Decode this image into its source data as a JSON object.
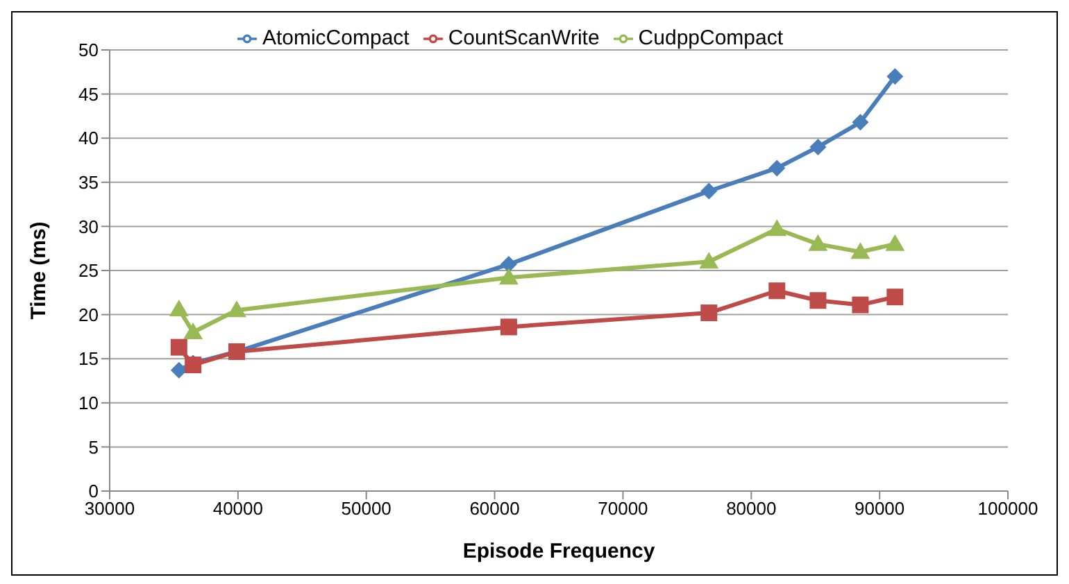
{
  "chart_data": {
    "type": "line",
    "xlabel": "Episode Frequency",
    "ylabel": "Time (ms)",
    "x": [
      35400,
      36500,
      39900,
      61100,
      76700,
      82000,
      85200,
      88500,
      91200
    ],
    "series": [
      {
        "name": "AtomicCompact",
        "color": "#4a7ebb",
        "marker": "diamond",
        "values": [
          13.7,
          14.5,
          15.8,
          25.7,
          34,
          36.6,
          39,
          41.8,
          47
        ]
      },
      {
        "name": "CountScanWrite",
        "color": "#be4b48",
        "marker": "square",
        "values": [
          16.3,
          14.3,
          15.8,
          18.6,
          20.2,
          22.7,
          21.6,
          21.1,
          22
        ]
      },
      {
        "name": "CudppCompact",
        "color": "#98b954",
        "marker": "triangle",
        "values": [
          20.6,
          18,
          20.5,
          24.2,
          26,
          29.7,
          28,
          27.1,
          28
        ]
      }
    ],
    "xlim": [
      30000,
      100000
    ],
    "xticks": [
      30000,
      40000,
      50000,
      60000,
      70000,
      80000,
      90000,
      100000
    ],
    "ylim": [
      0,
      50
    ],
    "yticks": [
      0,
      5,
      10,
      15,
      20,
      25,
      30,
      35,
      40,
      45,
      50
    ],
    "grid": "y",
    "legend": "top"
  }
}
